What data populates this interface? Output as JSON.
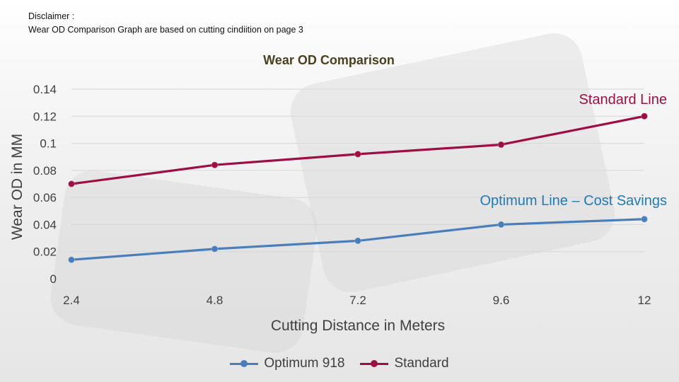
{
  "disclaimer": {
    "heading": "Disclaimer :",
    "text": "Wear OD Comparison Graph are based on cutting cindiition on page 3"
  },
  "chart_data": {
    "type": "line",
    "title": "Wear OD Comparison",
    "xlabel": "Cutting Distance in Meters",
    "ylabel": "Wear OD in MM",
    "categories": [
      "2.4",
      "4.8",
      "7.2",
      "9.6",
      "12"
    ],
    "y_ticks": [
      "0",
      "0.02",
      "0.04",
      "0.06",
      "0.08",
      "0.1",
      "0.12",
      "0.14"
    ],
    "ylim": [
      0,
      0.14
    ],
    "grid": true,
    "legend_position": "bottom",
    "series": [
      {
        "name": "Optimum 918",
        "color": "#4a7ebb",
        "values": [
          0.014,
          0.022,
          0.028,
          0.04,
          0.044
        ]
      },
      {
        "name": "Standard",
        "color": "#9e0e44",
        "values": [
          0.07,
          0.084,
          0.092,
          0.099,
          0.12
        ]
      }
    ],
    "annotations": {
      "standard": "Standard Line",
      "optimum": "Optimum Line – Cost Savings"
    }
  }
}
